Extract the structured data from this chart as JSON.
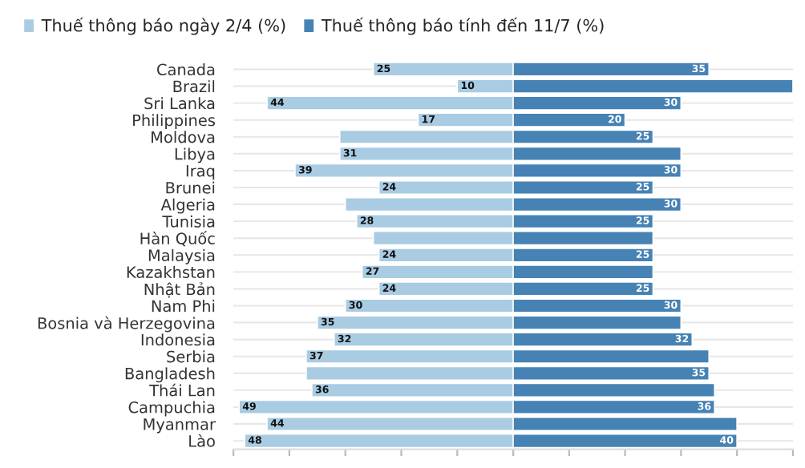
{
  "chart_data": [
    {
      "type": "bar",
      "orientation": "horizontal",
      "categories": [
        "Canada",
        "Brazil",
        "Sri Lanka",
        "Philippines",
        "Moldova",
        "Libya",
        "Iraq",
        "Brunei",
        "Algeria",
        "Tunisia",
        "Hàn Quốc",
        "Malaysia",
        "Kazakhstan",
        "Nhật Bản",
        "Nam Phi",
        "Bosnia và Herzegovina",
        "Indonesia",
        "Serbia",
        "Bangladesh",
        "Thái Lan",
        "Campuchia",
        "Myanmar",
        "Lào"
      ],
      "series": [
        {
          "name": "Thuế thông báo ngày 2/4 (%)",
          "color": "#a9cce3",
          "values": [
            25,
            10,
            44,
            17,
            31,
            31,
            39,
            24,
            30,
            28,
            25,
            24,
            27,
            24,
            30,
            35,
            32,
            37,
            37,
            36,
            49,
            44,
            48
          ],
          "value_labels": [
            "25",
            "10",
            "44",
            "17",
            null,
            "31",
            "39",
            "24",
            null,
            "28",
            null,
            "24",
            "27",
            "24",
            "30",
            "35",
            "32",
            "37",
            null,
            "36",
            "49",
            "44",
            "48"
          ]
        }
      ],
      "xlim": [
        50,
        0
      ],
      "xticks": [
        {
          "value": 50,
          "label": null
        },
        {
          "value": 40,
          "label": null
        },
        {
          "value": 30,
          "label": null
        },
        {
          "value": 20,
          "label": null
        },
        {
          "value": 10,
          "label": null
        },
        {
          "value": 0,
          "label": null
        }
      ],
      "tick_labels": "y",
      "grid": "y",
      "legend": "top"
    },
    {
      "type": "bar",
      "orientation": "horizontal",
      "categories": [
        null,
        null,
        null,
        null,
        null,
        null,
        null,
        null,
        null,
        null,
        null,
        null,
        null,
        null,
        null,
        null,
        null,
        null,
        null,
        null,
        null,
        null,
        null
      ],
      "series": [
        {
          "name": "Thuế thông báo tính đến 11/7 (%)",
          "color": "#4682b4",
          "values": [
            35,
            50,
            30,
            20,
            25,
            30,
            30,
            25,
            30,
            25,
            25,
            25,
            25,
            25,
            30,
            30,
            32,
            35,
            35,
            36,
            36,
            40,
            40
          ],
          "value_labels": [
            "35",
            null,
            "30",
            "20",
            "25",
            null,
            "30",
            "25",
            "30",
            "25",
            null,
            "25",
            null,
            "25",
            "30",
            null,
            "32",
            null,
            "35",
            null,
            "36",
            null,
            "40"
          ]
        }
      ],
      "xlim": [
        0,
        50
      ],
      "xticks": [
        {
          "value": 0,
          "label": null
        },
        {
          "value": 10,
          "label": null
        },
        {
          "value": 20,
          "label": null
        },
        {
          "value": 30,
          "label": null
        },
        {
          "value": 40,
          "label": null
        },
        {
          "value": 50,
          "label": null
        }
      ],
      "tick_labels": false,
      "grid": "y",
      "legend": "top"
    }
  ]
}
